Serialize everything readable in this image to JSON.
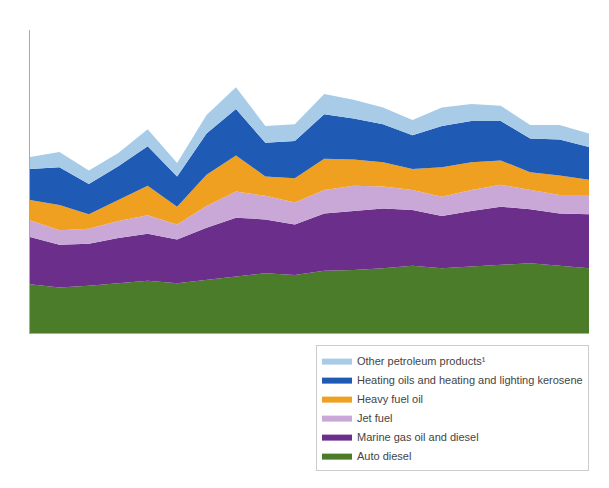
{
  "chart_data": {
    "type": "area",
    "stacked": true,
    "categories": [
      null,
      null,
      null,
      null,
      null,
      null,
      null,
      null,
      null,
      null,
      null,
      null,
      null,
      null,
      null,
      null,
      null,
      null,
      null,
      null
    ],
    "series": [
      {
        "name": "Auto diesel",
        "color": "#4a7c2a",
        "values": [
          290,
          270,
          280,
          295,
          310,
          295,
          315,
          335,
          355,
          345,
          370,
          375,
          385,
          400,
          385,
          395,
          405,
          415,
          400,
          385
        ]
      },
      {
        "name": "Marine gas oil and diesel",
        "color": "#6b2e8a",
        "values": [
          280,
          255,
          250,
          270,
          280,
          260,
          310,
          350,
          320,
          300,
          340,
          350,
          355,
          330,
          310,
          330,
          345,
          320,
          310,
          320
        ]
      },
      {
        "name": "Jet fuel",
        "color": "#c9a8d8",
        "values": [
          100,
          85,
          90,
          100,
          110,
          90,
          130,
          155,
          140,
          130,
          140,
          150,
          130,
          120,
          115,
          125,
          130,
          115,
          110,
          115
        ]
      },
      {
        "name": "Heavy fuel oil",
        "color": "#f0a020",
        "values": [
          120,
          150,
          85,
          125,
          175,
          105,
          185,
          215,
          115,
          145,
          185,
          155,
          145,
          125,
          175,
          165,
          145,
          105,
          115,
          90
        ]
      },
      {
        "name": "Heating oils and heating and lighting kerosene",
        "color": "#1f5ab5",
        "values": [
          185,
          225,
          180,
          200,
          235,
          180,
          245,
          275,
          200,
          220,
          265,
          245,
          225,
          200,
          245,
          245,
          235,
          200,
          215,
          195
        ]
      },
      {
        "name": "Other petroleum products¹",
        "color": "#a8cce8",
        "values": [
          70,
          90,
          80,
          80,
          100,
          80,
          110,
          130,
          100,
          100,
          120,
          110,
          100,
          90,
          110,
          100,
          90,
          80,
          85,
          80
        ]
      }
    ],
    "ylim": [
      0,
      1800
    ],
    "yticks": [],
    "grid": false,
    "tick_labels": false,
    "legend": "lower right"
  }
}
